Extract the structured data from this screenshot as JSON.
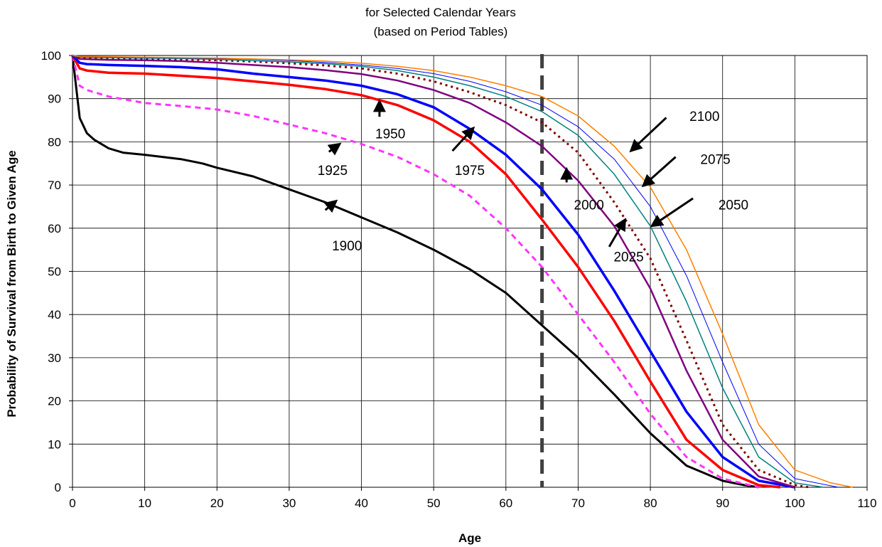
{
  "chart_data": {
    "type": "line",
    "title": "",
    "subtitle_lines": [
      "for Selected Calendar Years",
      "(based on Period Tables)"
    ],
    "xlabel": "Age",
    "ylabel": "Probability of Survival from Birth to Given Age",
    "xlim": [
      0,
      110
    ],
    "ylim": [
      0,
      100
    ],
    "xticks": [
      0,
      10,
      20,
      30,
      40,
      50,
      60,
      70,
      80,
      90,
      100,
      110
    ],
    "yticks": [
      0,
      10,
      20,
      30,
      40,
      50,
      60,
      70,
      80,
      90,
      100
    ],
    "grid": true,
    "reference_line": {
      "x": 65,
      "style": "dashed",
      "color": "#404040"
    },
    "series": [
      {
        "name": "1900",
        "color": "#000000",
        "style": "solid",
        "width": 3,
        "x": [
          0,
          1,
          2,
          3,
          4,
          5,
          7,
          10,
          15,
          18,
          20,
          25,
          30,
          35,
          40,
          45,
          50,
          55,
          60,
          65,
          70,
          75,
          80,
          85,
          90,
          93,
          95
        ],
        "y": [
          100,
          85.5,
          82,
          80.5,
          79.5,
          78.5,
          77.5,
          77,
          76,
          75,
          74,
          72,
          69,
          66,
          62.5,
          59,
          55,
          50.5,
          45,
          37.5,
          30,
          21.5,
          12.5,
          5,
          1.5,
          0.5,
          0
        ]
      },
      {
        "name": "1925",
        "color": "#ff33ff",
        "style": "dashed",
        "width": 3,
        "x": [
          0,
          1,
          2,
          5,
          10,
          15,
          20,
          25,
          30,
          35,
          40,
          45,
          50,
          55,
          60,
          65,
          70,
          75,
          80,
          85,
          90,
          95
        ],
        "y": [
          100,
          93,
          92,
          90.5,
          89,
          88.3,
          87.5,
          86,
          84,
          82,
          79.5,
          76.5,
          72.5,
          67.5,
          60,
          51,
          40,
          29,
          17,
          7,
          2,
          0
        ]
      },
      {
        "name": "1950",
        "color": "#ff0000",
        "style": "solid",
        "width": 3.5,
        "x": [
          0,
          1,
          2,
          5,
          10,
          15,
          20,
          25,
          30,
          35,
          40,
          45,
          50,
          55,
          60,
          65,
          70,
          75,
          80,
          85,
          90,
          95,
          98
        ],
        "y": [
          100,
          97,
          96.5,
          96,
          95.8,
          95.3,
          94.8,
          94,
          93.2,
          92.2,
          90.8,
          88.5,
          85,
          80,
          72.5,
          62,
          51,
          38.5,
          24.5,
          11,
          4,
          0.5,
          0
        ]
      },
      {
        "name": "1975",
        "color": "#0000ff",
        "style": "solid",
        "width": 3.5,
        "x": [
          0,
          1,
          2,
          5,
          10,
          15,
          20,
          25,
          30,
          35,
          40,
          45,
          50,
          55,
          60,
          65,
          70,
          75,
          80,
          85,
          90,
          95,
          100
        ],
        "y": [
          100,
          98.3,
          98,
          97.8,
          97.6,
          97.3,
          96.8,
          95.8,
          95,
          94.2,
          93,
          91,
          88,
          83,
          77,
          69,
          58.5,
          45.5,
          31.5,
          17.5,
          7,
          1.5,
          0
        ]
      },
      {
        "name": "2000",
        "color": "#800080",
        "style": "solid",
        "width": 2.5,
        "x": [
          0,
          1,
          5,
          10,
          15,
          20,
          25,
          30,
          35,
          40,
          45,
          50,
          55,
          60,
          65,
          70,
          75,
          80,
          85,
          90,
          95,
          100
        ],
        "y": [
          100,
          99.2,
          99,
          98.9,
          98.7,
          98.3,
          97.8,
          97.3,
          96.6,
          95.7,
          94.2,
          92,
          89,
          84.5,
          79,
          71,
          60.5,
          46,
          27,
          11,
          2.5,
          0
        ]
      },
      {
        "name": "2025",
        "color": "#800000",
        "style": "dotted",
        "width": 3,
        "x": [
          0,
          1,
          5,
          10,
          15,
          20,
          25,
          30,
          35,
          40,
          45,
          50,
          55,
          60,
          65,
          70,
          75,
          80,
          85,
          90,
          95,
          100,
          102
        ],
        "y": [
          100,
          99.4,
          99.3,
          99.2,
          99.1,
          98.9,
          98.6,
          98.2,
          97.7,
          97,
          95.8,
          94,
          91.5,
          88.5,
          84.5,
          77.5,
          66,
          53,
          34,
          14.5,
          4,
          0.5,
          0
        ]
      },
      {
        "name": "2050",
        "color": "#008080",
        "style": "solid",
        "width": 1.5,
        "x": [
          0,
          1,
          5,
          10,
          15,
          20,
          25,
          30,
          35,
          40,
          45,
          50,
          55,
          60,
          65,
          70,
          75,
          80,
          85,
          90,
          95,
          100,
          104
        ],
        "y": [
          100,
          99.6,
          99.5,
          99.4,
          99.3,
          99.1,
          98.8,
          98.5,
          98.1,
          97.5,
          96.5,
          95,
          93,
          90.5,
          87,
          81.5,
          72.5,
          60.5,
          43,
          23,
          7,
          1,
          0
        ]
      },
      {
        "name": "2075",
        "color": "#0000ff",
        "style": "solid",
        "width": 1,
        "x": [
          0,
          1,
          5,
          10,
          15,
          20,
          25,
          30,
          35,
          40,
          45,
          50,
          55,
          60,
          65,
          70,
          75,
          80,
          85,
          90,
          95,
          100,
          106
        ],
        "y": [
          100,
          99.7,
          99.6,
          99.5,
          99.4,
          99.3,
          99.1,
          98.8,
          98.4,
          97.8,
          97,
          95.8,
          94,
          91.6,
          88.5,
          83.5,
          76,
          65,
          49,
          29,
          10,
          2,
          0
        ]
      },
      {
        "name": "2100",
        "color": "#ff8000",
        "style": "solid",
        "width": 1.5,
        "x": [
          0,
          1,
          5,
          10,
          15,
          20,
          25,
          30,
          35,
          40,
          45,
          50,
          55,
          60,
          65,
          70,
          75,
          80,
          85,
          90,
          95,
          100,
          105,
          108
        ],
        "y": [
          100,
          99.8,
          99.7,
          99.6,
          99.5,
          99.4,
          99.2,
          99,
          98.7,
          98.2,
          97.5,
          96.5,
          95,
          93,
          90.5,
          86,
          79,
          69.5,
          55,
          35.5,
          14.5,
          4,
          1,
          0
        ]
      }
    ]
  },
  "annotations": [
    {
      "label": "1900",
      "tx": 38,
      "ty": 56,
      "ax1": 35,
      "ay1": 64.2,
      "ax2": 36.5,
      "ay2": 66.3
    },
    {
      "label": "1925",
      "tx": 36,
      "ty": 73.5,
      "ax1": 35.5,
      "ay1": 77.7,
      "ax2": 37,
      "ay2": 79.5
    },
    {
      "label": "1950",
      "tx": 44,
      "ty": 82,
      "ax1": 42.5,
      "ay1": 85.8,
      "ax2": 42.5,
      "ay2": 89.4
    },
    {
      "label": "1975",
      "tx": 55,
      "ty": 73.5,
      "ax1": 52.6,
      "ay1": 77.9,
      "ax2": 55.5,
      "ay2": 83.2
    },
    {
      "label": "2000",
      "tx": 71.5,
      "ty": 65.5,
      "ax1": 68.4,
      "ay1": 70.6,
      "ax2": 68.4,
      "ay2": 73.7
    },
    {
      "label": "2025",
      "tx": 77,
      "ty": 53.5,
      "ax1": 74.3,
      "ay1": 55.7,
      "ax2": 76.5,
      "ay2": 62
    },
    {
      "label": "2050",
      "tx": 91.5,
      "ty": 65.5,
      "ax1": 85.9,
      "ay1": 66.9,
      "ax2": 80.2,
      "ay2": 60.5
    },
    {
      "label": "2075",
      "tx": 89,
      "ty": 76,
      "ax1": 83.5,
      "ay1": 76.5,
      "ax2": 79,
      "ay2": 69.8
    },
    {
      "label": "2100",
      "tx": 87.5,
      "ty": 86,
      "ax1": 82.2,
      "ay1": 85.6,
      "ax2": 77.3,
      "ay2": 77.9
    }
  ]
}
